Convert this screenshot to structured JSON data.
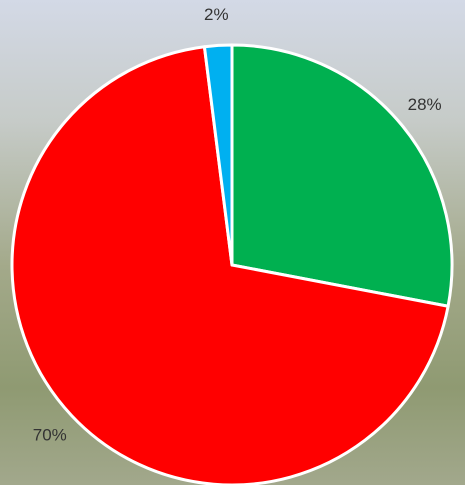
{
  "chart_data": {
    "type": "pie",
    "values": [
      28,
      70,
      2
    ],
    "value_labels": [
      "28%",
      "70%",
      "2%"
    ],
    "colors": [
      "#00b050",
      "#ff0000",
      "#00b0f0"
    ]
  }
}
